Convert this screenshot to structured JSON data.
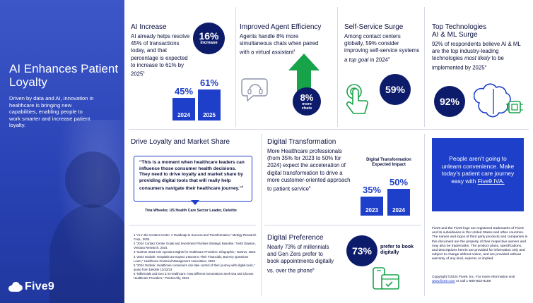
{
  "hero": {
    "title": "AI Enhances Patient Loyalty",
    "body": "Driven by data and AI, innovation in healthcare is bringing new capabilities, enabling people to work smarter and increase patient loyalty.",
    "logo_text": "Five9",
    "logo_icon": "cloud-icon",
    "bg_color": "#2a43b6"
  },
  "ai_increase": {
    "heading": "AI Increase",
    "body": "AI already helps resolve 45% of transactions today, and that percentage is expected to increase to 61% by 2025",
    "footnote": "1",
    "badge_value": "16%",
    "badge_label": "increase",
    "bars": [
      {
        "year": "2024",
        "value": "45%",
        "number": 45
      },
      {
        "year": "2025",
        "value": "61%",
        "number": 61
      }
    ]
  },
  "agent_efficiency": {
    "heading": "Improved Agent Efficiency",
    "body": "Agents handle 8% more simultaneous chats when paired with a virtual assistant",
    "footnote": "1",
    "badge_value": "8%",
    "badge_label": "more chats",
    "icon": "chat-headset-icon",
    "arrow_icon": "up-arrow-icon"
  },
  "self_service": {
    "heading": "Self-Service Surge",
    "body_pre": "Among contact centers globally, 59% consider improving self-service systems a ",
    "body_em": "top goal",
    "body_post": " in 2024",
    "footnote": "2",
    "badge_value": "59%",
    "icon": "tap-hand-icon"
  },
  "top_tech": {
    "heading_line1": "Top Technologies",
    "heading_line2": "AI & ML Surge",
    "body_pre": "92% of respondents believe AI & ML are the top industry-leading technologies ",
    "body_em": "most likely",
    "body_post": " to be implemented by 2025",
    "footnote": "3",
    "badge_value": "92%",
    "icon": "brain-chip-icon"
  },
  "loyalty": {
    "heading": "Drive Loyalty and Market Share",
    "quote": "“This is a moment when healthcare leaders can influence those consumer health decisions. They need to drive loyalty and market share by providing digital tools that will really help consumers navigate their healthcare journey.”",
    "quote_footnote": "4",
    "attribution": "Tina Wheeler, US Health Care Sector Leader, Deloitte"
  },
  "references": [
    "1 “AI in the Contact Center: A Roadmap to Success and Transformation,” Metrigy Research Corp., 2024.",
    "2 “2024 Contact Center Goals and Investment Priorities Strategic Baseline,” Keith Dawson, Ventana Research, 2024.",
    "3 “Gartner 2023 CIO Agenda Insights for Healthcare Providers: Infographic,” Gartner, 2023.",
    "4 “2024 Outlook: Hospitals are Expect a Boost to Their Financials, But Key Questions Loom,” Healthcare Financial Management Association, 2023.",
    "5 “2024 Outlook: Healthcare consumers can take control of their journey with digital tools,” quote from Deloitte 12/22/23",
    "6 “Millennials and Gen Z in Healthcare: How Different Generations Seek Out and Choose Healthcare Providers,” PracticeAlly, 2024."
  ],
  "digital_transformation": {
    "heading": "Digital Transformation",
    "body": "More Healthcare professionals (from 35% for 2023 to 50% for 2024) expect the acceleration of digital transformation to drive a more customer-oriented approach to patient service",
    "footnote": "5",
    "chart_title": "Digital Transformation Expected Impact",
    "bars": [
      {
        "year": "2023",
        "value": "35%",
        "number": 35
      },
      {
        "year": "2024",
        "value": "50%",
        "number": 50
      }
    ]
  },
  "digital_preference": {
    "heading": "Digital Preference",
    "body": "Nearly 73% of millennials and Gen Zers prefer to book appointments digitally vs. over the phone",
    "footnote": "6",
    "badge_value": "73%",
    "badge_side_text": "prefer to book digitally",
    "icon": "mobile-booking-icon"
  },
  "cta": {
    "text_pre": "People aren’t going to unlearn convenience. Make today’s patient care journey easy with ",
    "link": "Five9 IVA."
  },
  "legal": {
    "text": "Five9 and the Five9 logo are registered trademarks of Five9 and its subsidiaries in the United States and other countries. The names and logos of third party products and companies in this document are the property of their respective owners and may also be trademarks. The product plans, specifications, and descriptions herein are provided for information only and subject to change without notice, and are provided without warranty of any kind, express or implied.",
    "copyright": "Copyright ©2024 Five9, Inc. For more information visit",
    "website": "www.five9.com",
    "phone": " or call 1-800-553-8159"
  },
  "colors": {
    "accent": "#1e3fc9",
    "navy": "#0d1b6b",
    "green_arrow": "#17a34a"
  }
}
